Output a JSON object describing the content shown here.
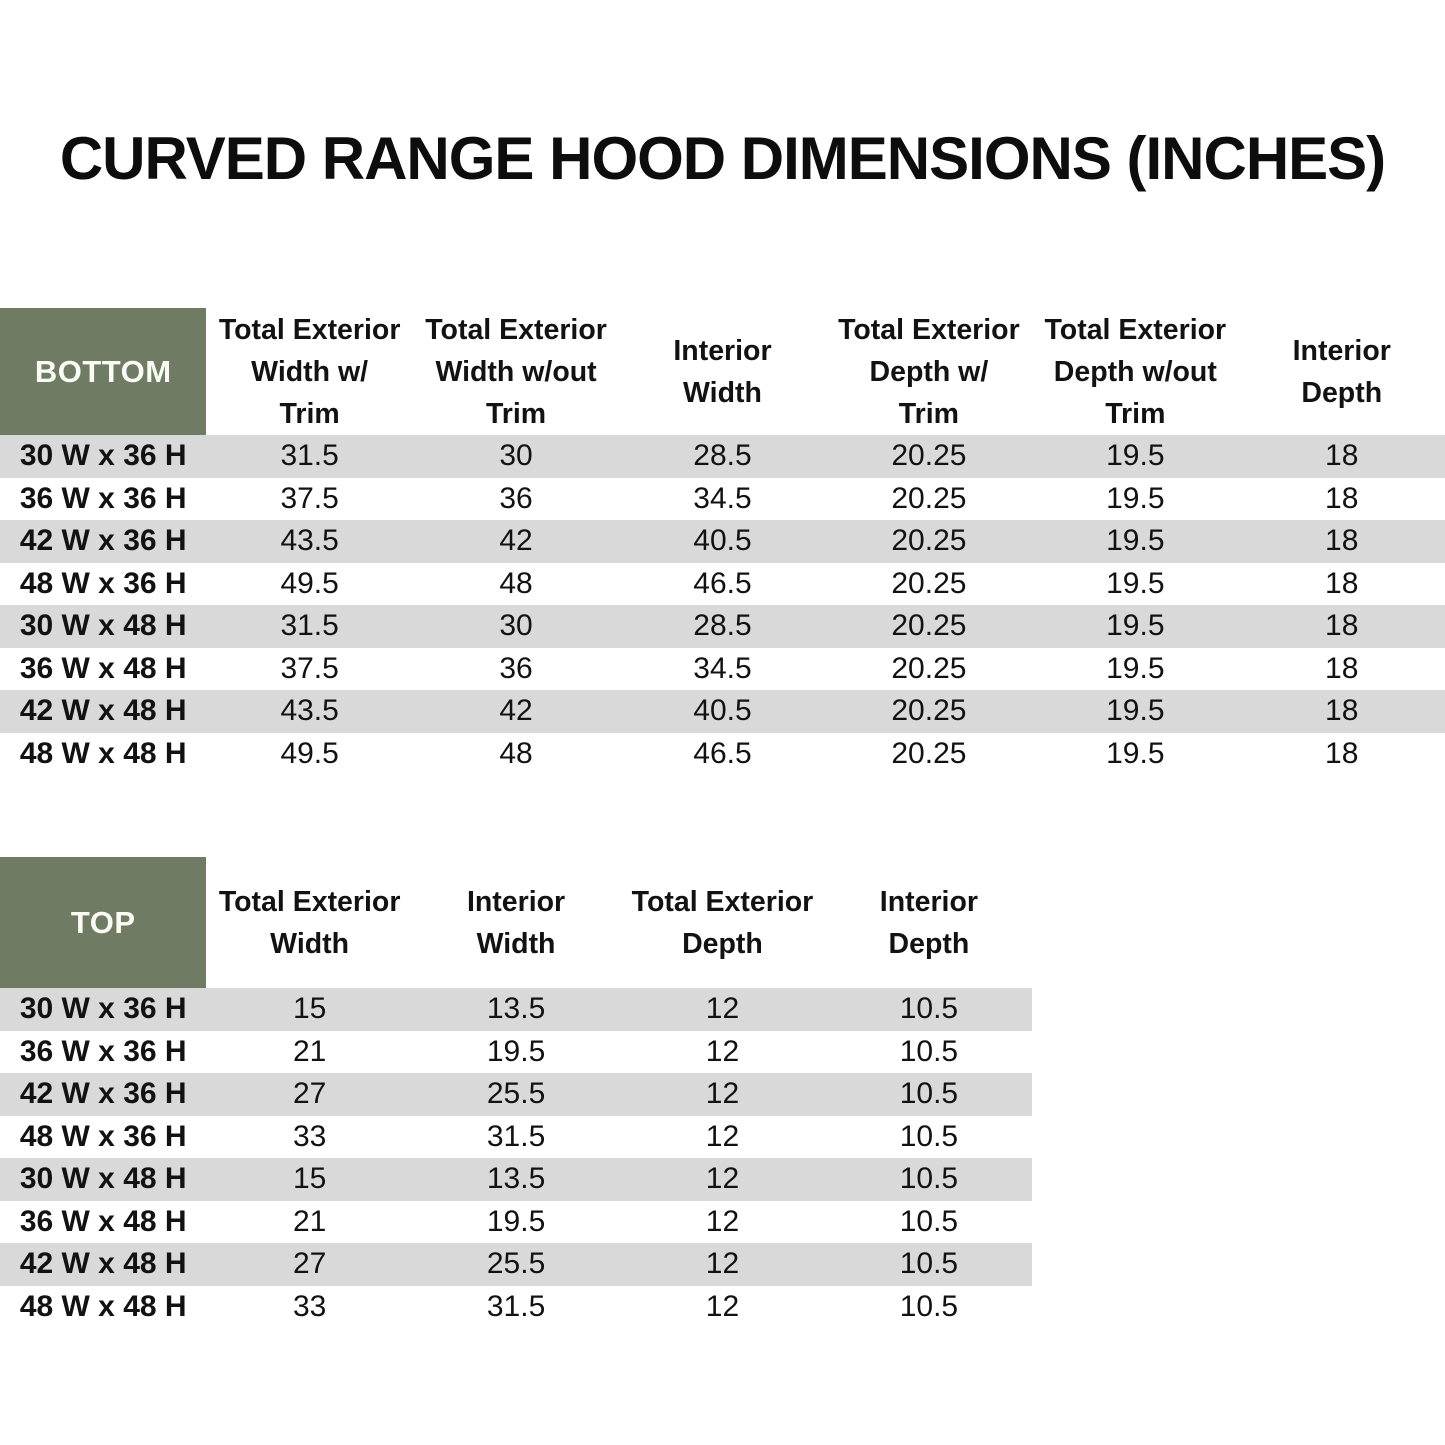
{
  "title": "CURVED RANGE HOOD DIMENSIONS (INCHES)",
  "colors": {
    "header_green": "#6F7B62",
    "stripe_gray": "#D9D9D9",
    "header_text": "#FBFBF5",
    "body_text": "#121212"
  },
  "bottom_table": {
    "corner_label": "BOTTOM",
    "columns": [
      [
        "Total Exterior",
        "Width w/",
        "Trim"
      ],
      [
        "Total Exterior",
        "Width w/out",
        "Trim"
      ],
      [
        "Interior",
        "Width"
      ],
      [
        "Total Exterior",
        "Depth w/",
        "Trim"
      ],
      [
        "Total Exterior",
        "Depth w/out",
        "Trim"
      ],
      [
        "Interior",
        "Depth"
      ]
    ],
    "rows": [
      {
        "label": "30 W x 36 H",
        "values": [
          "31.5",
          "30",
          "28.5",
          "20.25",
          "19.5",
          "18"
        ]
      },
      {
        "label": "36 W x 36 H",
        "values": [
          "37.5",
          "36",
          "34.5",
          "20.25",
          "19.5",
          "18"
        ]
      },
      {
        "label": "42 W x 36 H",
        "values": [
          "43.5",
          "42",
          "40.5",
          "20.25",
          "19.5",
          "18"
        ]
      },
      {
        "label": "48 W x 36 H",
        "values": [
          "49.5",
          "48",
          "46.5",
          "20.25",
          "19.5",
          "18"
        ]
      },
      {
        "label": "30 W x 48 H",
        "values": [
          "31.5",
          "30",
          "28.5",
          "20.25",
          "19.5",
          "18"
        ]
      },
      {
        "label": "36 W x 48 H",
        "values": [
          "37.5",
          "36",
          "34.5",
          "20.25",
          "19.5",
          "18"
        ]
      },
      {
        "label": "42 W x 48 H",
        "values": [
          "43.5",
          "42",
          "40.5",
          "20.25",
          "19.5",
          "18"
        ]
      },
      {
        "label": "48 W x 48 H",
        "values": [
          "49.5",
          "48",
          "46.5",
          "20.25",
          "19.5",
          "18"
        ]
      }
    ]
  },
  "top_table": {
    "corner_label": "TOP",
    "columns": [
      [
        "Total Exterior",
        "Width"
      ],
      [
        "Interior",
        "Width"
      ],
      [
        "Total Exterior",
        "Depth"
      ],
      [
        "Interior",
        "Depth"
      ]
    ],
    "rows": [
      {
        "label": "30 W x 36 H",
        "values": [
          "15",
          "13.5",
          "12",
          "10.5"
        ]
      },
      {
        "label": "36 W x 36 H",
        "values": [
          "21",
          "19.5",
          "12",
          "10.5"
        ]
      },
      {
        "label": "42 W x 36 H",
        "values": [
          "27",
          "25.5",
          "12",
          "10.5"
        ]
      },
      {
        "label": "48 W x 36 H",
        "values": [
          "33",
          "31.5",
          "12",
          "10.5"
        ]
      },
      {
        "label": "30 W x 48 H",
        "values": [
          "15",
          "13.5",
          "12",
          "10.5"
        ]
      },
      {
        "label": "36 W x 48 H",
        "values": [
          "21",
          "19.5",
          "12",
          "10.5"
        ]
      },
      {
        "label": "42 W x 48 H",
        "values": [
          "27",
          "25.5",
          "12",
          "10.5"
        ]
      },
      {
        "label": "48 W x 48 H",
        "values": [
          "33",
          "31.5",
          "12",
          "10.5"
        ]
      }
    ]
  }
}
